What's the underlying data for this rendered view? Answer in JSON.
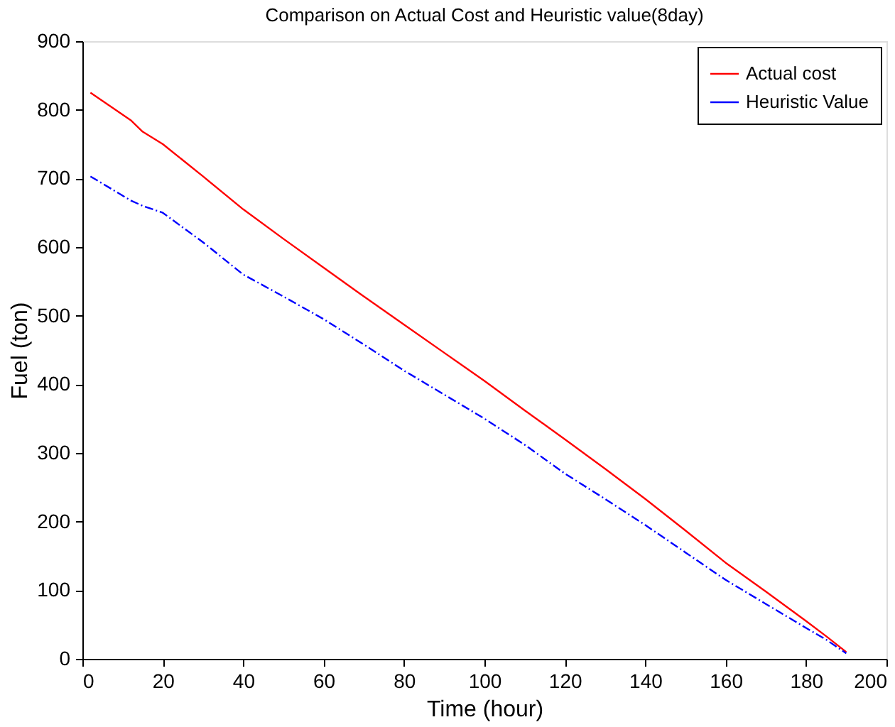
{
  "chart_data": {
    "type": "line",
    "title": "Comparison on Actual Cost and Heuristic value(8day)",
    "xlabel": "Time (hour)",
    "ylabel": "Fuel (ton)",
    "x": [
      2,
      12,
      15,
      20,
      30,
      40,
      50,
      60,
      70,
      80,
      90,
      100,
      110,
      120,
      130,
      140,
      150,
      160,
      170,
      180,
      185,
      190
    ],
    "series": [
      {
        "name": "Actual cost",
        "color": "#ff0000",
        "line_style": "solid",
        "values": [
          825,
          785,
          768,
          750,
          703,
          655,
          612,
          570,
          528,
          487,
          446,
          405,
          362,
          320,
          277,
          233,
          187,
          140,
          98,
          55,
          33,
          10
        ]
      },
      {
        "name": "Heuristic Value",
        "color": "#0000ff",
        "line_style": "dashed",
        "values": [
          703,
          668,
          660,
          650,
          607,
          560,
          528,
          495,
          458,
          420,
          385,
          350,
          312,
          270,
          233,
          195,
          155,
          115,
          80,
          45,
          28,
          8
        ]
      }
    ],
    "xlim": [
      0,
      200
    ],
    "xticks": [
      0,
      20,
      40,
      60,
      80,
      100,
      120,
      140,
      160,
      180,
      200
    ],
    "ylim": [
      0,
      900
    ],
    "yticks": [
      0,
      100,
      200,
      300,
      400,
      500,
      600,
      700,
      800,
      900
    ],
    "grid": false,
    "legend": "top right",
    "marker": "none"
  }
}
